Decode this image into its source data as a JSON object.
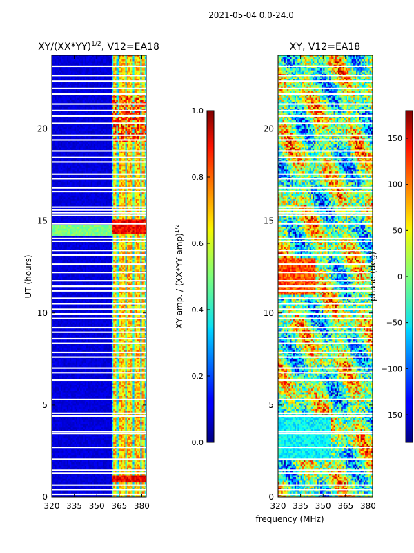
{
  "figure_title": "2021-05-04 0.0-24.0",
  "shared_xlabel": "frequency (MHz)",
  "chart_data": [
    {
      "type": "heatmap",
      "title_main": "XY/(XX*YY)",
      "title_sup": "1/2",
      "title_rest": ", V12=EA18",
      "xlabel": "",
      "ylabel": "UT (hours)",
      "xlim": [
        320,
        383
      ],
      "ylim": [
        0,
        24
      ],
      "xticks": [
        320,
        335,
        350,
        365,
        380
      ],
      "yticks": [
        0,
        5,
        10,
        15,
        20
      ],
      "colormap": "jet",
      "colorbar": {
        "label_main": "XY amp. / (XX*YY amp)",
        "label_sup": "1/2",
        "range": [
          0.0,
          1.0
        ],
        "ticks": [
          "0.0",
          "0.2",
          "0.4",
          "0.6",
          "0.8",
          "1.0"
        ],
        "tick_values": [
          0.0,
          0.2,
          0.4,
          0.6,
          0.8,
          1.0
        ]
      },
      "description": "Normalized cross-correlation amplitude; mostly low (~0.05) below 360 MHz, high-amplitude banded structure 360-380 MHz; white gaps mark flagged time samples."
    },
    {
      "type": "heatmap",
      "title_main": "XY, V12=EA18",
      "title_sup": "",
      "title_rest": "",
      "xlabel": "",
      "ylabel": "",
      "xlim": [
        320,
        383
      ],
      "ylim": [
        0,
        24
      ],
      "xticks": [
        320,
        335,
        350,
        365,
        380
      ],
      "yticks": [
        0,
        5,
        10,
        15,
        20
      ],
      "colormap": "jet",
      "colorbar": {
        "label_main": "phase (deg)",
        "label_sup": "",
        "range": [
          -180,
          180
        ],
        "ticks": [
          "150",
          "100",
          "50",
          "0",
          "−50",
          "−100",
          "−150"
        ],
        "tick_values": [
          150,
          100,
          50,
          0,
          -50,
          -100,
          -150
        ]
      },
      "description": "Cross-correlation phase in degrees, spanning -180 to 180 with mottled structure across the band."
    }
  ]
}
